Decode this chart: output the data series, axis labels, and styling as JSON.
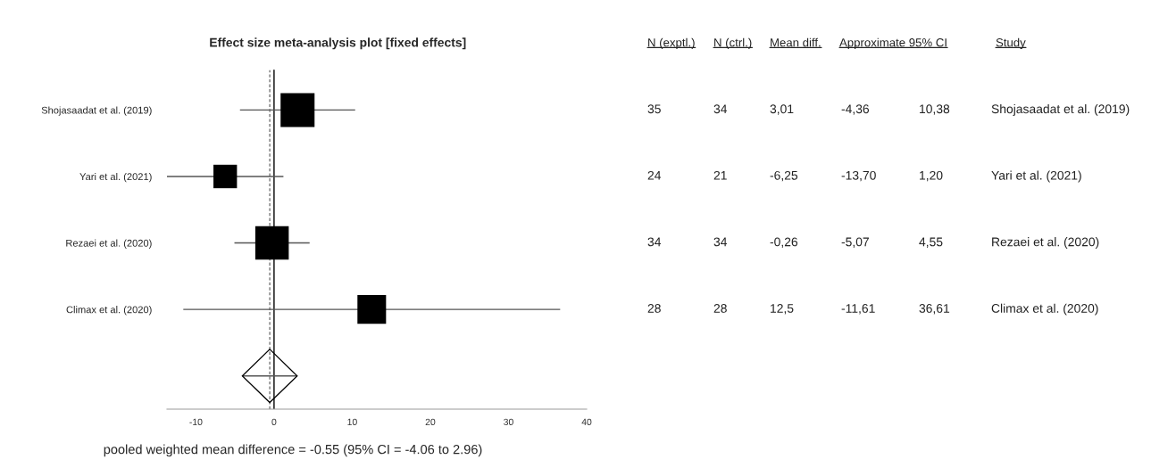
{
  "chart_data": [
    {
      "type": "bubble",
      "orientation": "horizontal",
      "title": "Effect size meta-analysis plot [fixed effects]",
      "xlabel": "pooled weighted mean difference = -0.55 (95% CI = -4.06 to 2.96)",
      "categories": [
        "Shojasaadat et al. (2019)",
        "Yari et al. (2021)",
        "Rezaei et al. (2020)",
        "Climax et al. (2020)",
        null
      ],
      "series": [
        {
          "color": "#000000",
          "marker": "square",
          "values": [
            3.01,
            -6.25,
            -0.26,
            12.5,
            null
          ],
          "sizes": [
            1,
            0.48,
            0.97,
            0.71,
            null
          ],
          "errors": [
            [
              -4.36,
              10.38
            ],
            [
              -13.7,
              1.2
            ],
            [
              -5.07,
              4.55
            ],
            [
              -11.61,
              36.61
            ],
            null
          ]
        },
        {
          "color": "#000000",
          "marker": "diamond",
          "values": [
            null,
            null,
            null,
            null,
            -0.55
          ],
          "errors": [
            null,
            null,
            null,
            null,
            [
              -4.06,
              2.96
            ]
          ]
        }
      ],
      "xlim": [
        -13.7,
        40
      ],
      "xticks": [
        -10,
        0,
        10,
        20,
        30,
        40
      ],
      "ref_lines": [
        {
          "axis": "x",
          "value": 0,
          "line_style": "solid"
        },
        {
          "axis": "x",
          "value": -0.55,
          "line_style": "dashed"
        }
      ],
      "grid": false,
      "legend": false
    },
    {
      "type": "other",
      "categories": [
        "N (exptl.)",
        "N (ctrl.)",
        "Mean diff.",
        "Approximate 95% CI",
        null,
        "Study"
      ],
      "cell_labels": [
        [
          "35",
          "34",
          "3,01",
          "-4,36",
          "10,38",
          "Shojasaadat et al. (2019)"
        ],
        [
          "24",
          "21",
          "-6,25",
          "-13,70",
          "1,20",
          "Yari et al. (2021)"
        ],
        [
          "34",
          "34",
          "-0,26",
          "-5,07",
          "4,55",
          "Rezaei et al. (2020)"
        ],
        [
          "28",
          "28",
          "12,5",
          "-11,61",
          "36,61",
          "Climax et al. (2020)"
        ]
      ]
    }
  ]
}
